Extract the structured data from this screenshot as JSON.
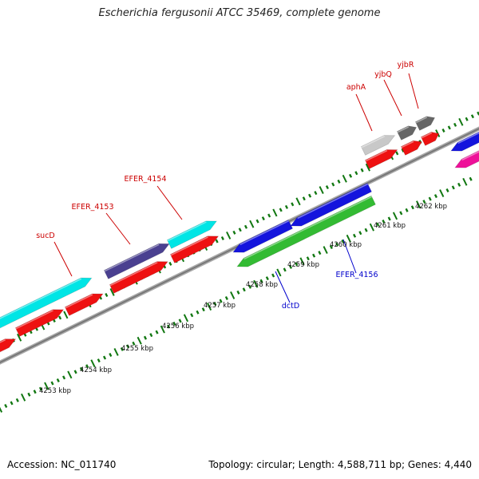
{
  "title": "Escherichia fergusonii ATCC 35469, complete genome",
  "footer": {
    "accession": "Accession: NC_011740",
    "summary": "Topology: circular; Length: 4,588,711 bp; Genes: 4,440"
  },
  "colors": {
    "forward_cds": "#00e5e5",
    "forward_cds_dark": "#4a4090",
    "forward_red": "#ee1111",
    "reverse_blue": "#1414dd",
    "reverse_green": "#33bb33",
    "reverse_magenta": "#ee1199",
    "backbone": "#888888",
    "tick": "#117711",
    "label_forward": "#cc0000",
    "label_reverse": "#0000cc"
  },
  "tick_labels": [
    "4253 kbp",
    "4254 kbp",
    "4255 kbp",
    "4256 kbp",
    "4257 kbp",
    "4258 kbp",
    "4259 kbp",
    "4260 kbp",
    "4261 kbp",
    "4262 kbp"
  ],
  "gene_labels": [
    {
      "text": "sucD",
      "strand": "forward"
    },
    {
      "text": "EFER_4153",
      "strand": "forward"
    },
    {
      "text": "EFER_4154",
      "strand": "forward"
    },
    {
      "text": "aphA",
      "strand": "forward"
    },
    {
      "text": "yjbQ",
      "strand": "forward"
    },
    {
      "text": "yjbR",
      "strand": "forward"
    },
    {
      "text": "dctD",
      "strand": "reverse"
    },
    {
      "text": "EFER_4156",
      "strand": "reverse"
    }
  ]
}
